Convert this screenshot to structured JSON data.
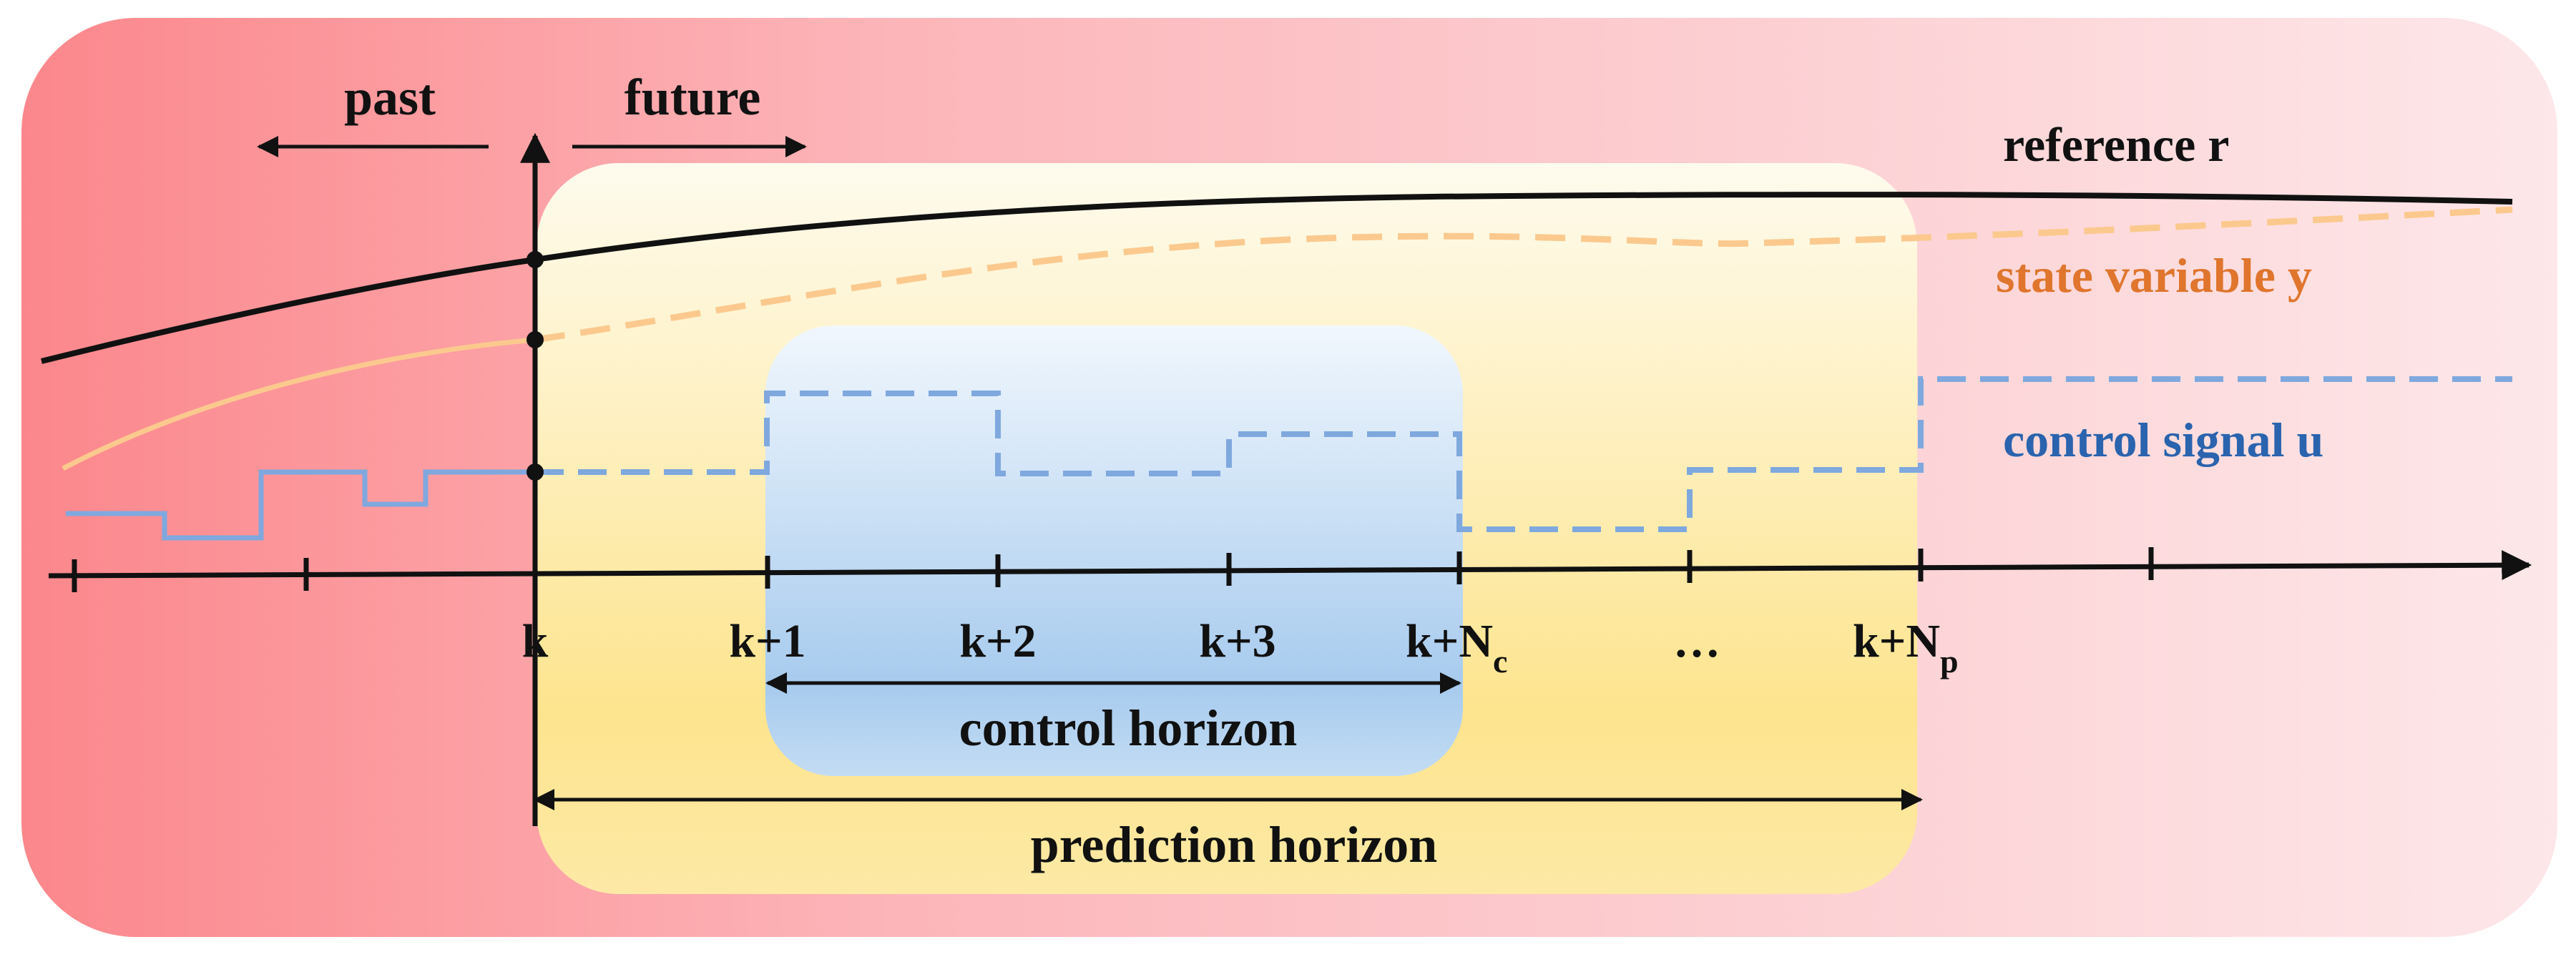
{
  "labels": {
    "past": "past",
    "future": "future",
    "reference": "reference r",
    "state": "state variable y",
    "control_signal": "control signal u",
    "control_horizon": "control horizon",
    "prediction_horizon": "prediction horizon"
  },
  "ticks": {
    "k": "k",
    "k1": "k+1",
    "k2": "k+2",
    "k3": "k+3",
    "knc_base": "k+N",
    "knc_sub": "c",
    "dots": "…",
    "knp_base": "k+N",
    "knp_sub": "p"
  },
  "colors": {
    "background_left": "#fb8a8f",
    "background_right": "#fde6e8",
    "prediction_box": "#fde38a",
    "control_box": "#a9cdef",
    "reference": "#111111",
    "state": "#fbc98e",
    "control": "#7fa8de",
    "state_text": "#e0752d",
    "control_text": "#2a63ae"
  }
}
